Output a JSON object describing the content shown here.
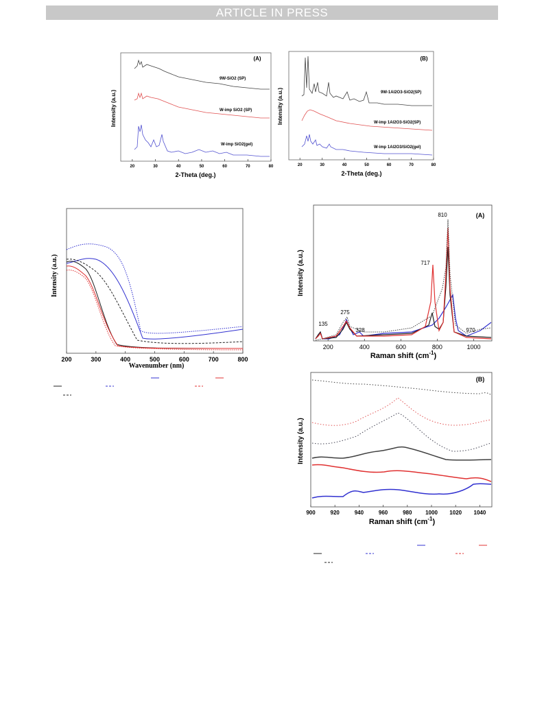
{
  "header": {
    "banner": "ARTICLE IN PRESS"
  },
  "chart_data": [
    {
      "id": "xrd-a",
      "type": "line",
      "panel_label": "(A)",
      "xlabel": "2-Theta (deg.)",
      "ylabel": "Intensity (a.u.)",
      "xlim": [
        15,
        80
      ],
      "xticks": [
        20,
        30,
        40,
        50,
        60,
        70,
        80
      ],
      "series": [
        {
          "name": "9W-SiO2 (SP)",
          "color": "#404040"
        },
        {
          "name": "W-imp SiO2 (SP)",
          "color": "#e05050"
        },
        {
          "name": "W-imp SiO2(gel)",
          "color": "#5050d0"
        }
      ]
    },
    {
      "id": "xrd-b",
      "type": "line",
      "panel_label": "(B)",
      "xlabel": "2-Theta (deg.)",
      "ylabel": "Intensity (a.u.)",
      "xlim": [
        15,
        80
      ],
      "xticks": [
        20,
        30,
        40,
        50,
        60,
        70,
        80
      ],
      "series": [
        {
          "name": "9W-1Al2O3-SiO2(SP)",
          "color": "#404040"
        },
        {
          "name": "W-imp 1Al2O3-SiO2(SP)",
          "color": "#e05050"
        },
        {
          "name": "W-imp 1Al2O3/SiO2(gel)",
          "color": "#5050d0"
        }
      ]
    },
    {
      "id": "uvvis",
      "type": "line",
      "xlabel": "Wavenumber (nm)",
      "ylabel": "Intensity (a.u.)",
      "xlim": [
        200,
        800
      ],
      "xticks": [
        200,
        300,
        400,
        500,
        600,
        700,
        800
      ],
      "series": [
        {
          "color": "#3030d0",
          "style": "dotted"
        },
        {
          "color": "#3030d0",
          "style": "solid"
        },
        {
          "color": "#202020",
          "style": "dashed"
        },
        {
          "color": "#202020",
          "style": "solid"
        },
        {
          "color": "#e03030",
          "style": "solid"
        },
        {
          "color": "#e03030",
          "style": "dotted"
        }
      ]
    },
    {
      "id": "raman-a",
      "type": "line",
      "panel_label": "(A)",
      "xlabel": "Raman shift (cm-1)",
      "ylabel": "Intensity (a.u.)",
      "xlim": [
        120,
        1100
      ],
      "xticks": [
        200,
        400,
        600,
        800,
        1000
      ],
      "annotations": [
        "135",
        "275",
        "328",
        "717",
        "810",
        "970"
      ]
    },
    {
      "id": "raman-b",
      "type": "line",
      "panel_label": "(B)",
      "xlabel": "Raman shift (cm-1)",
      "ylabel": "Intensity (a.u.)",
      "xlim": [
        900,
        1050
      ],
      "xticks": [
        900,
        920,
        940,
        960,
        980,
        1000,
        1020,
        1040
      ]
    }
  ]
}
